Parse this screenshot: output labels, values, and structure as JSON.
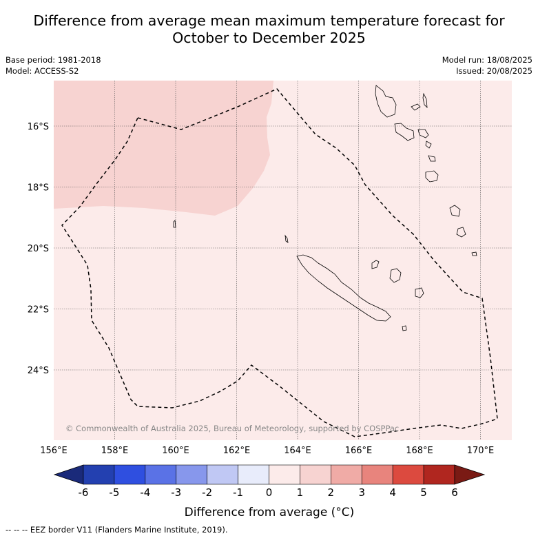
{
  "title_line1": "Difference from average mean maximum temperature forecast for",
  "title_line2": "October to December 2025",
  "base_period": "Base period: 1981-2018",
  "model": "Model: ACCESS-S2",
  "model_run": "Model run: 18/08/2025",
  "issued": "Issued: 20/08/2025",
  "copyright": "© Commonwealth of Australia 2025, Bureau of Meteorology, supported by COSPPac",
  "lat_labels": [
    "16°S",
    "18°S",
    "20°S",
    "22°S",
    "24°S"
  ],
  "lon_labels": [
    "156°E",
    "158°E",
    "160°E",
    "162°E",
    "164°E",
    "166°E",
    "168°E",
    "170°E"
  ],
  "colorbar": {
    "ticks": [
      "-6",
      "-5",
      "-4",
      "-3",
      "-2",
      "-1",
      "0",
      "1",
      "2",
      "3",
      "4",
      "5",
      "6"
    ],
    "colors": [
      "#1a2a7a",
      "#2340b0",
      "#2f4fe0",
      "#5a72e6",
      "#8797ec",
      "#c0c8f4",
      "#e8ecfb",
      "#fcebea",
      "#f7d3d1",
      "#f0aba6",
      "#e8847d",
      "#dc4a3f",
      "#b0261f",
      "#7a1a14"
    ],
    "label": "Difference from average (°C)"
  },
  "footnote": "--  --  -- EEZ border V11 (Flanders Marine Institute, 2019).",
  "colors": {
    "anomaly_0_1": "#fcebea",
    "anomaly_1_2": "#f7d3d1"
  }
}
